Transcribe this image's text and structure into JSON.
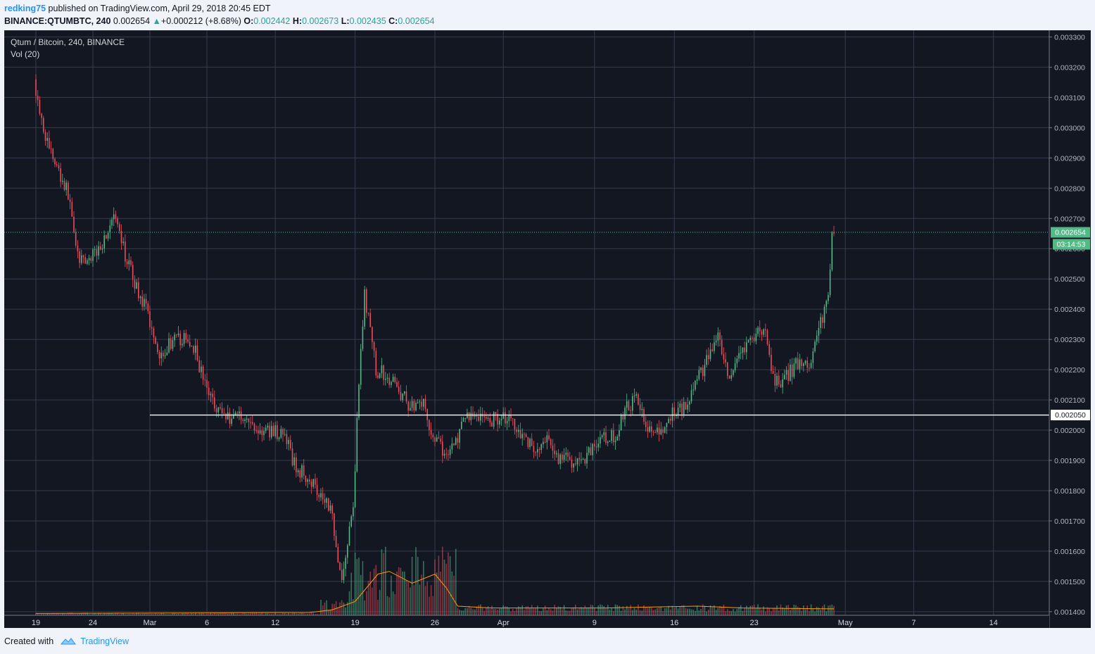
{
  "header": {
    "user": "redking75",
    "published": "published on TradingView.com, April 29, 2018 20:45 EDT",
    "symbol_interval": "BINANCE:QTUMBTC, 240",
    "last": "0.002654",
    "change": "+0.000212 (+8.68%)",
    "o_label": "O:",
    "o_value": "0.002442",
    "h_label": "H:",
    "h_value": "0.002673",
    "l_label": "L:",
    "l_value": "0.002435",
    "c_label": "C:",
    "c_value": "0.002654"
  },
  "footer": {
    "created_with": "Created with",
    "brand": "TradingView"
  },
  "colors": {
    "background": "#131722",
    "grid": "#363c4e",
    "up": "#53b987",
    "down": "#eb4d5c",
    "volume_ma": "#ff9800",
    "support_line": "#ffffff",
    "price_line": "#53b987"
  },
  "chart_data": {
    "type": "candlestick",
    "legend": [
      "Qtum / Bitcoin, 240, BINANCE",
      "Vol (20)"
    ],
    "y_ticks": [
      "0.003300",
      "0.003200",
      "0.003100",
      "0.003000",
      "0.002900",
      "0.002800",
      "0.002700",
      "0.002600",
      "0.002500",
      "0.002400",
      "0.002300",
      "0.002200",
      "0.002100",
      "0.002000",
      "0.001900",
      "0.001800",
      "0.001700",
      "0.001600",
      "0.001500",
      "0.001400"
    ],
    "ylim": [
      0.001395,
      0.003315
    ],
    "x_ticks": [
      {
        "label": "19",
        "day": 0
      },
      {
        "label": "24",
        "day": 5
      },
      {
        "label": "Mar",
        "day": 10
      },
      {
        "label": "6",
        "day": 15
      },
      {
        "label": "12",
        "day": 21
      },
      {
        "label": "19",
        "day": 28
      },
      {
        "label": "26",
        "day": 35
      },
      {
        "label": "Apr",
        "day": 41
      },
      {
        "label": "9",
        "day": 49
      },
      {
        "label": "16",
        "day": 56
      },
      {
        "label": "23",
        "day": 63
      },
      {
        "label": "May",
        "day": 71
      },
      {
        "label": "7",
        "day": 77
      },
      {
        "label": "14",
        "day": 84
      }
    ],
    "last_price_label": "0.002654",
    "countdown_label": "03:14:53",
    "support_label": "0.002050",
    "support_price": 0.00205,
    "support_from_day": 10,
    "price_path": [
      [
        0,
        0.00316
      ],
      [
        1,
        0.00297
      ],
      [
        2,
        0.00287
      ],
      [
        3,
        0.00278
      ],
      [
        4,
        0.00255
      ],
      [
        5,
        0.00257
      ],
      [
        6,
        0.00262
      ],
      [
        7,
        0.0027
      ],
      [
        8,
        0.00258
      ],
      [
        9,
        0.00247
      ],
      [
        10,
        0.00238
      ],
      [
        11,
        0.00225
      ],
      [
        12,
        0.00229
      ],
      [
        13,
        0.0023
      ],
      [
        14,
        0.00228
      ],
      [
        15,
        0.00215
      ],
      [
        16,
        0.00208
      ],
      [
        17,
        0.00204
      ],
      [
        18,
        0.00206
      ],
      [
        19,
        0.00202
      ],
      [
        20,
        0.00199
      ],
      [
        21,
        0.002
      ],
      [
        22,
        0.00198
      ],
      [
        23,
        0.00187
      ],
      [
        24,
        0.00185
      ],
      [
        25,
        0.0018
      ],
      [
        26,
        0.00175
      ],
      [
        27,
        0.0015
      ],
      [
        28,
        0.00175
      ],
      [
        28.5,
        0.00215
      ],
      [
        29,
        0.00245
      ],
      [
        30,
        0.0022
      ],
      [
        31,
        0.00218
      ],
      [
        32,
        0.00213
      ],
      [
        33,
        0.00208
      ],
      [
        34,
        0.0021
      ],
      [
        35,
        0.00198
      ],
      [
        36,
        0.00192
      ],
      [
        37,
        0.00196
      ],
      [
        38,
        0.00205
      ],
      [
        39,
        0.00205
      ],
      [
        40,
        0.00203
      ],
      [
        41,
        0.00205
      ],
      [
        42,
        0.00203
      ],
      [
        43,
        0.00198
      ],
      [
        44,
        0.00193
      ],
      [
        45,
        0.00196
      ],
      [
        46,
        0.00191
      ],
      [
        47,
        0.0019
      ],
      [
        48,
        0.00189
      ],
      [
        49,
        0.00195
      ],
      [
        50,
        0.00197
      ],
      [
        51,
        0.00198
      ],
      [
        52,
        0.00208
      ],
      [
        53,
        0.0021
      ],
      [
        54,
        0.002
      ],
      [
        55,
        0.00198
      ],
      [
        56,
        0.00206
      ],
      [
        57,
        0.00208
      ],
      [
        58,
        0.00215
      ],
      [
        59,
        0.00223
      ],
      [
        60,
        0.0023
      ],
      [
        61,
        0.00215
      ],
      [
        62,
        0.00225
      ],
      [
        63,
        0.0023
      ],
      [
        64,
        0.00234
      ],
      [
        65,
        0.00215
      ],
      [
        66,
        0.00218
      ],
      [
        67,
        0.00222
      ],
      [
        68,
        0.00221
      ],
      [
        69,
        0.00235
      ],
      [
        69.7,
        0.00245
      ],
      [
        70,
        0.00265
      ]
    ],
    "volume": {
      "name": "Vol (20)",
      "base_level": "low before day 25, spike days 25-36, moderate after",
      "ma_path": [
        [
          0,
          0.02
        ],
        [
          24,
          0.03
        ],
        [
          26,
          0.06
        ],
        [
          28,
          0.15
        ],
        [
          30,
          0.45
        ],
        [
          31,
          0.48
        ],
        [
          33,
          0.35
        ],
        [
          35,
          0.45
        ],
        [
          36,
          0.3
        ],
        [
          37,
          0.1
        ],
        [
          40,
          0.08
        ],
        [
          50,
          0.08
        ],
        [
          58,
          0.1
        ],
        [
          62,
          0.08
        ],
        [
          70,
          0.07
        ]
      ]
    }
  }
}
